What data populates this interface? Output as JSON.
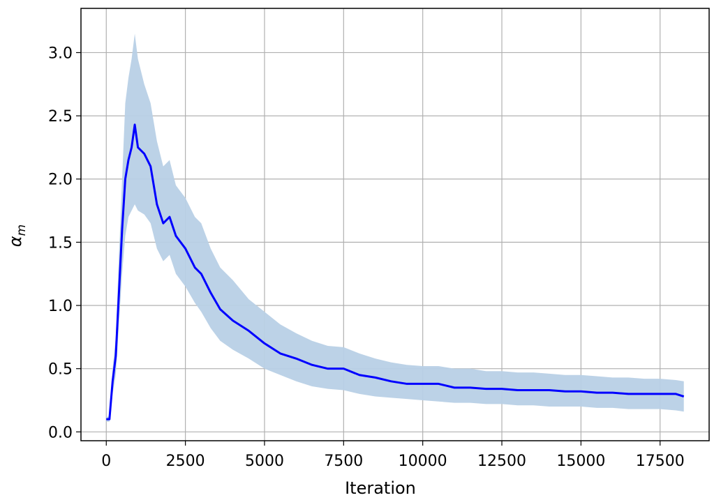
{
  "chart_data": {
    "type": "line",
    "title": "",
    "xlabel": "Iteration",
    "ylabel": "α",
    "ylabel_subscript": "m",
    "xlim": [
      -800,
      19050
    ],
    "ylim": [
      -0.07,
      3.35
    ],
    "xticks": [
      0,
      2500,
      5000,
      7500,
      10000,
      12500,
      15000,
      17500
    ],
    "xtick_labels": [
      "0",
      "2500",
      "5000",
      "7500",
      "10000",
      "12500",
      "15000",
      "17500"
    ],
    "yticks": [
      0.0,
      0.5,
      1.0,
      1.5,
      2.0,
      2.5,
      3.0
    ],
    "ytick_labels": [
      "0.0",
      "0.5",
      "1.0",
      "1.5",
      "2.0",
      "2.5",
      "3.0"
    ],
    "grid": true,
    "series": [
      {
        "color": "#0000ff",
        "band_color": "#b8d0e6",
        "x": [
          0,
          100,
          200,
          300,
          400,
          500,
          600,
          700,
          800,
          900,
          1000,
          1200,
          1400,
          1600,
          1800,
          2000,
          2200,
          2500,
          2800,
          3000,
          3300,
          3600,
          4000,
          4500,
          5000,
          5500,
          6000,
          6500,
          7000,
          7500,
          8000,
          8500,
          9000,
          9500,
          10000,
          10500,
          11000,
          11500,
          12000,
          12500,
          13000,
          13500,
          14000,
          14500,
          15000,
          15500,
          16000,
          16500,
          17000,
          17500,
          18000,
          18250
        ],
        "y": [
          0.1,
          0.1,
          0.4,
          0.6,
          1.1,
          1.6,
          2.0,
          2.15,
          2.25,
          2.43,
          2.25,
          2.2,
          2.1,
          1.8,
          1.65,
          1.7,
          1.55,
          1.45,
          1.3,
          1.25,
          1.1,
          0.97,
          0.88,
          0.8,
          0.7,
          0.62,
          0.58,
          0.53,
          0.5,
          0.5,
          0.45,
          0.43,
          0.4,
          0.38,
          0.38,
          0.38,
          0.35,
          0.35,
          0.34,
          0.34,
          0.33,
          0.33,
          0.33,
          0.32,
          0.32,
          0.31,
          0.31,
          0.3,
          0.3,
          0.3,
          0.3,
          0.28
        ],
        "lower": [
          0.08,
          0.08,
          0.3,
          0.45,
          0.85,
          1.25,
          1.55,
          1.7,
          1.75,
          1.8,
          1.75,
          1.72,
          1.65,
          1.45,
          1.35,
          1.4,
          1.25,
          1.15,
          1.02,
          0.95,
          0.82,
          0.72,
          0.65,
          0.58,
          0.5,
          0.45,
          0.4,
          0.36,
          0.34,
          0.33,
          0.3,
          0.28,
          0.27,
          0.26,
          0.25,
          0.24,
          0.23,
          0.23,
          0.22,
          0.22,
          0.21,
          0.21,
          0.2,
          0.2,
          0.2,
          0.19,
          0.19,
          0.18,
          0.18,
          0.18,
          0.17,
          0.16
        ],
        "upper": [
          0.12,
          0.12,
          0.5,
          0.75,
          1.4,
          2.0,
          2.6,
          2.8,
          2.95,
          3.15,
          2.95,
          2.75,
          2.6,
          2.3,
          2.1,
          2.15,
          1.95,
          1.85,
          1.7,
          1.65,
          1.45,
          1.3,
          1.2,
          1.05,
          0.95,
          0.85,
          0.78,
          0.72,
          0.68,
          0.67,
          0.62,
          0.58,
          0.55,
          0.53,
          0.52,
          0.52,
          0.5,
          0.5,
          0.48,
          0.48,
          0.47,
          0.47,
          0.46,
          0.45,
          0.45,
          0.44,
          0.43,
          0.43,
          0.42,
          0.42,
          0.41,
          0.4
        ]
      }
    ]
  }
}
